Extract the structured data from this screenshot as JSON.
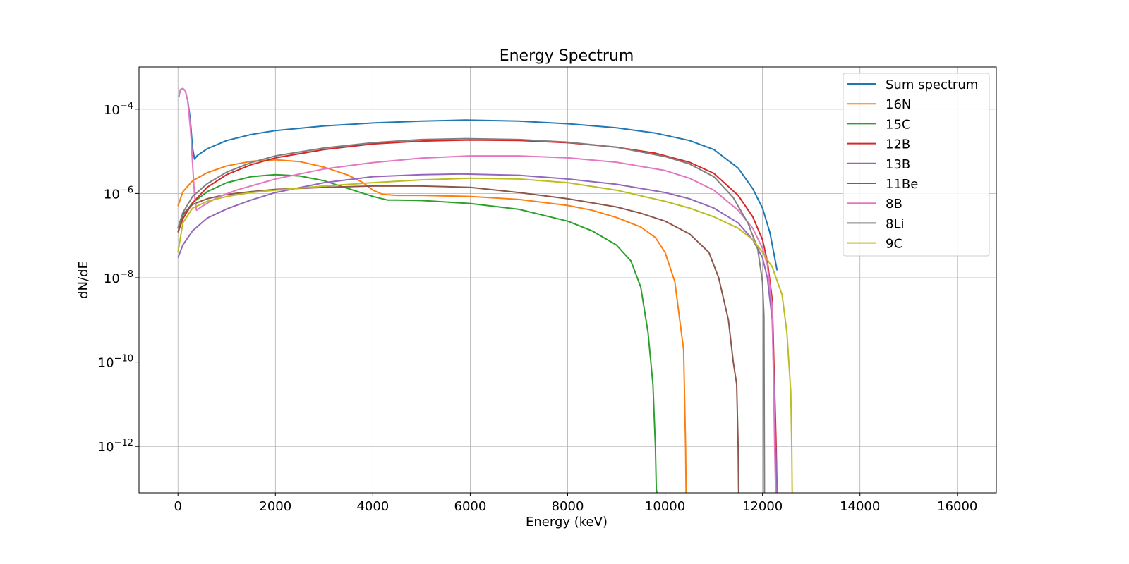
{
  "chart_data": {
    "type": "line",
    "title": "Energy Spectrum",
    "xlabel": "Energy (keV)",
    "ylabel": "dN/dE",
    "xlim": [
      -800,
      16800
    ],
    "ylim_log10": [
      -13.1,
      -3.0
    ],
    "yscale": "log",
    "grid": true,
    "legend_position": "top-right",
    "x_ticks": [
      0,
      2000,
      4000,
      6000,
      8000,
      10000,
      12000,
      14000,
      16000
    ],
    "x_tick_labels": [
      "0",
      "2000",
      "4000",
      "6000",
      "8000",
      "10000",
      "12000",
      "14000",
      "16000"
    ],
    "y_ticks_log10": [
      -4,
      -6,
      -8,
      -10,
      -12
    ],
    "y_tick_labels": [
      {
        "base": "10",
        "exp": "−4"
      },
      {
        "base": "10",
        "exp": "−6"
      },
      {
        "base": "10",
        "exp": "−8"
      },
      {
        "base": "10",
        "exp": "−10"
      },
      {
        "base": "10",
        "exp": "−12"
      }
    ],
    "series": [
      {
        "name": "Sum spectrum",
        "color": "#1f77b4",
        "x": [
          20,
          50,
          100,
          150,
          200,
          250,
          300,
          340,
          400,
          600,
          1000,
          1500,
          2000,
          3000,
          4000,
          5000,
          5900,
          7000,
          8000,
          9000,
          9800,
          10500,
          11000,
          11500,
          11800,
          12000,
          12150,
          12250,
          12300
        ],
        "y": [
          0.0002,
          0.00029,
          0.00031,
          0.00027,
          0.00016,
          6e-05,
          1.2e-05,
          6.5e-06,
          8e-06,
          1.15e-05,
          1.8e-05,
          2.5e-05,
          3.1e-05,
          4e-05,
          4.7e-05,
          5.2e-05,
          5.5e-05,
          5.2e-05,
          4.5e-05,
          3.6e-05,
          2.7e-05,
          1.8e-05,
          1.1e-05,
          4e-06,
          1.3e-06,
          4.5e-07,
          1.2e-07,
          3e-08,
          1.5e-08
        ]
      },
      {
        "name": "16N",
        "color": "#ff7f0e",
        "x": [
          0,
          100,
          300,
          600,
          1000,
          1500,
          2000,
          2500,
          3000,
          3500,
          3800,
          4000,
          4200,
          4500,
          5000,
          6000,
          7000,
          8000,
          8500,
          9000,
          9500,
          9800,
          10000,
          10200,
          10300,
          10380,
          10420,
          10430
        ],
        "y": [
          5e-07,
          1.1e-06,
          2e-06,
          3.1e-06,
          4.5e-06,
          5.8e-06,
          6.3e-06,
          5.7e-06,
          4.2e-06,
          2.7e-06,
          1.8e-06,
          1.2e-06,
          9.5e-07,
          9e-07,
          9e-07,
          8.5e-07,
          7.2e-07,
          5.2e-07,
          4e-07,
          2.7e-07,
          1.6e-07,
          9e-08,
          4e-08,
          8e-09,
          1e-09,
          2e-10,
          1e-12,
          8e-14
        ]
      },
      {
        "name": "15C",
        "color": "#2ca02c",
        "x": [
          0,
          100,
          300,
          600,
          1000,
          1500,
          2000,
          2500,
          3000,
          3500,
          4000,
          4300,
          4500,
          5000,
          6000,
          7000,
          8000,
          8500,
          9000,
          9300,
          9500,
          9650,
          9750,
          9800,
          9820,
          9830
        ],
        "y": [
          1.5e-07,
          3e-07,
          6e-07,
          1.1e-06,
          1.8e-06,
          2.5e-06,
          2.8e-06,
          2.6e-06,
          2e-06,
          1.3e-06,
          8.5e-07,
          7e-07,
          7e-07,
          6.8e-07,
          5.8e-07,
          4.2e-07,
          2.2e-07,
          1.3e-07,
          6e-08,
          2.5e-08,
          6e-09,
          5e-10,
          3e-11,
          1e-12,
          1e-13,
          8e-14
        ]
      },
      {
        "name": "12B",
        "color": "#d62728",
        "x": [
          0,
          100,
          300,
          600,
          1000,
          1500,
          2000,
          3000,
          4000,
          5000,
          6000,
          7000,
          8000,
          9000,
          9800,
          10500,
          11000,
          11500,
          11800,
          12000,
          12100,
          12200,
          12250,
          12280,
          12300
        ],
        "y": [
          1.2e-07,
          2.5e-07,
          6e-07,
          1.4e-06,
          2.8e-06,
          4.8e-06,
          7e-06,
          1.1e-05,
          1.5e-05,
          1.75e-05,
          1.85e-05,
          1.8e-05,
          1.6e-05,
          1.25e-05,
          9e-06,
          5.5e-06,
          3e-06,
          9e-07,
          2.8e-07,
          8e-08,
          2.5e-08,
          3e-09,
          2e-11,
          1e-12,
          8e-14
        ]
      },
      {
        "name": "13B",
        "color": "#9467bd",
        "x": [
          0,
          100,
          300,
          600,
          1000,
          1500,
          2000,
          3000,
          4000,
          5000,
          5800,
          7000,
          8000,
          9000,
          10000,
          10500,
          11000,
          11500,
          11800,
          12000,
          12100,
          12200,
          12270,
          12300
        ],
        "y": [
          3e-08,
          6e-08,
          1.3e-07,
          2.6e-07,
          4.3e-07,
          7e-07,
          1.05e-06,
          1.8e-06,
          2.5e-06,
          2.8e-06,
          2.9e-06,
          2.7e-06,
          2.2e-06,
          1.65e-06,
          1.05e-06,
          7.5e-07,
          4.5e-07,
          2e-07,
          8e-08,
          3e-08,
          1e-08,
          1e-09,
          1e-12,
          8e-14
        ]
      },
      {
        "name": "11Be",
        "color": "#8c564b",
        "x": [
          0,
          100,
          300,
          600,
          1000,
          1500,
          2000,
          3000,
          4000,
          5000,
          6000,
          7000,
          8000,
          9000,
          9500,
          10000,
          10500,
          10900,
          11100,
          11300,
          11400,
          11470,
          11500,
          11510
        ],
        "y": [
          1.2e-07,
          3.2e-07,
          5.5e-07,
          7.5e-07,
          9.5e-07,
          1.1e-06,
          1.25e-06,
          1.4e-06,
          1.5e-06,
          1.5e-06,
          1.4e-06,
          1.05e-06,
          7.5e-07,
          4.8e-07,
          3.4e-07,
          2.2e-07,
          1.1e-07,
          4e-08,
          1e-08,
          1e-09,
          1e-10,
          3e-11,
          1e-12,
          8e-14
        ]
      },
      {
        "name": "8B",
        "color": "#e377c2",
        "x": [
          20,
          50,
          100,
          150,
          200,
          260,
          300,
          340,
          380,
          500,
          800,
          1200,
          2000,
          3000,
          4000,
          5000,
          6000,
          7000,
          8000,
          9000,
          10000,
          10500,
          11000,
          11500,
          11800,
          12000,
          12100,
          12200,
          12250,
          12270
        ],
        "y": [
          0.0002,
          0.00029,
          0.00031,
          0.00027,
          0.00016,
          3e-05,
          5e-06,
          9e-07,
          4e-07,
          5e-07,
          8e-07,
          1.2e-06,
          2.2e-06,
          3.8e-06,
          5.4e-06,
          6.9e-06,
          7.8e-06,
          7.8e-06,
          7e-06,
          5.5e-06,
          3.5e-06,
          2.3e-06,
          1.2e-06,
          4e-07,
          1.5e-07,
          5e-08,
          2e-08,
          2e-09,
          1e-12,
          8e-14
        ]
      },
      {
        "name": "8Li",
        "color": "#7f7f7f",
        "x": [
          0,
          100,
          300,
          600,
          1000,
          1500,
          2000,
          3000,
          4000,
          5000,
          5900,
          7000,
          8000,
          9000,
          10000,
          10500,
          11000,
          11400,
          11700,
          11900,
          12000,
          12030,
          12040
        ],
        "y": [
          1.5e-07,
          3.5e-07,
          8.5e-07,
          1.7e-06,
          3.2e-06,
          5.4e-06,
          7.8e-06,
          1.2e-05,
          1.6e-05,
          1.9e-05,
          2e-05,
          1.9e-05,
          1.65e-05,
          1.25e-05,
          7.5e-06,
          5e-06,
          2.5e-06,
          8e-07,
          2e-07,
          5e-08,
          8e-09,
          1.2e-09,
          8e-14
        ]
      },
      {
        "name": "9C",
        "color": "#bcbd22",
        "x": [
          0,
          100,
          300,
          600,
          1000,
          1500,
          2000,
          3000,
          4000,
          5000,
          6000,
          7000,
          8000,
          9000,
          10000,
          10500,
          11000,
          11500,
          11800,
          12000,
          12200,
          12400,
          12500,
          12580,
          12600,
          12610
        ],
        "y": [
          4e-08,
          2e-07,
          4.5e-07,
          6.5e-07,
          8.5e-07,
          1.05e-06,
          1.2e-06,
          1.5e-06,
          1.8e-06,
          2.1e-06,
          2.3e-06,
          2.2e-06,
          1.8e-06,
          1.2e-06,
          6.5e-07,
          4.5e-07,
          2.8e-07,
          1.5e-07,
          8e-08,
          4e-08,
          1.8e-08,
          4e-09,
          5e-10,
          2e-11,
          1e-12,
          8e-14
        ]
      }
    ]
  }
}
